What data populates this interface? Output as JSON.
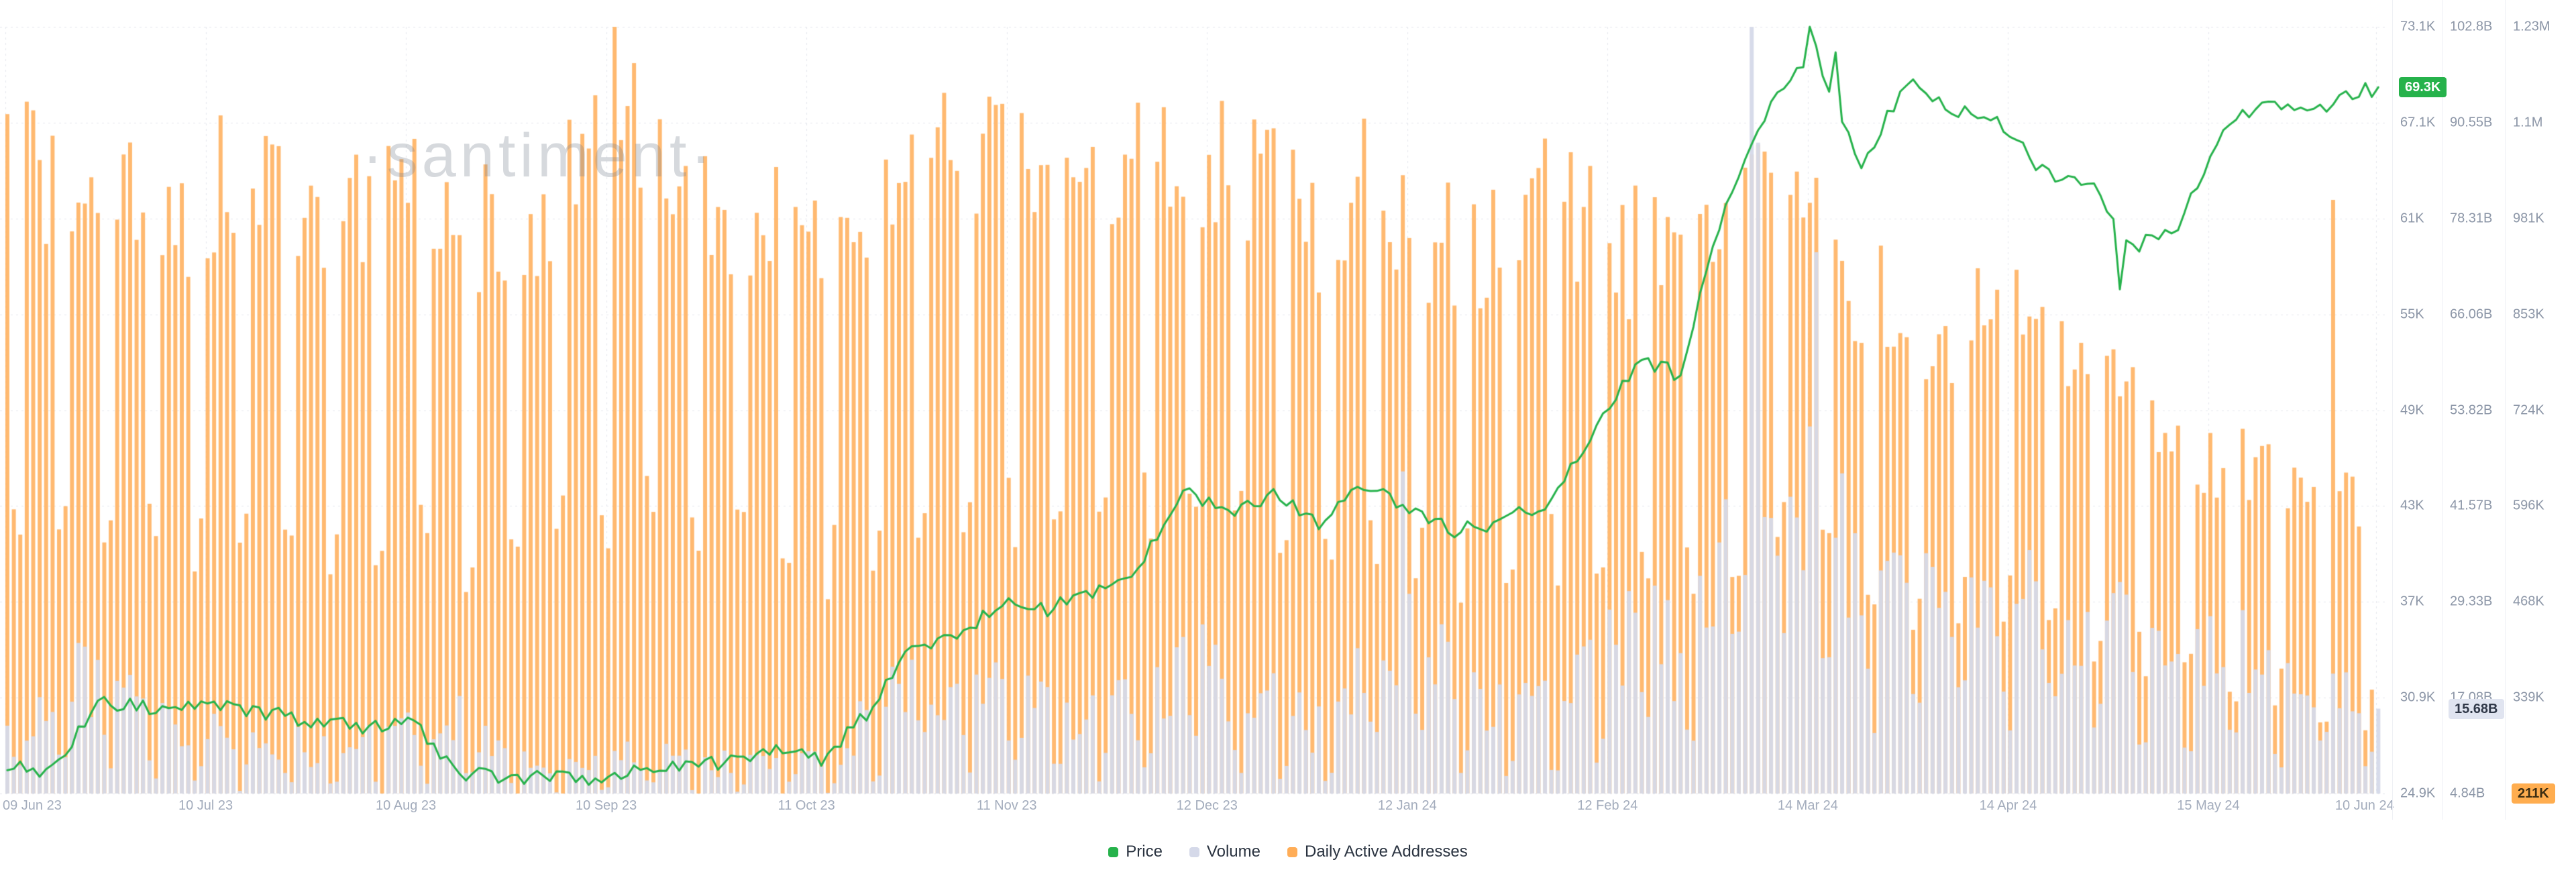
{
  "watermark": "·santiment·",
  "colors": {
    "grid": "#E4E7ED",
    "separator": "#EEF0F5",
    "axis_text": "#8C96A7",
    "x_axis_text": "#A3ACBC",
    "legend_text": "#2A3340",
    "watermark": "rgba(120,128,144,0.30)"
  },
  "legend": {
    "items": [
      {
        "label": "Price",
        "color": "#26B24B"
      },
      {
        "label": "Volume",
        "color": "#D5D9E9"
      },
      {
        "label": "Daily Active Addresses",
        "color": "#FFAD57"
      }
    ]
  },
  "chart_data": {
    "type": "mixed",
    "x_range_days": 367,
    "x_tick_labels": [
      "09 Jun 23",
      "10 Jul 23",
      "10 Aug 23",
      "10 Sep 23",
      "11 Oct 23",
      "11 Nov 23",
      "12 Dec 23",
      "12 Jan 24",
      "12 Feb 24",
      "14 Mar 24",
      "14 Apr 24",
      "15 May 24",
      "10 Jun 24"
    ],
    "x_tick_days": [
      0,
      31,
      62,
      93,
      124,
      155,
      186,
      217,
      248,
      279,
      310,
      341,
      367
    ],
    "axes": {
      "price": {
        "min": 24.9,
        "max": 73.1,
        "unit": "K USD",
        "ticks": [
          "73.1K",
          "67.1K",
          "61K",
          "55K",
          "49K",
          "43K",
          "37K",
          "30.9K",
          "24.9K"
        ]
      },
      "volume": {
        "min": 4.84,
        "max": 102.8,
        "unit": "B USD",
        "ticks": [
          "102.8B",
          "90.55B",
          "78.31B",
          "66.06B",
          "53.82B",
          "41.57B",
          "29.33B",
          "17.08B",
          "4.84B"
        ]
      },
      "daa": {
        "min": 211,
        "max": 1230,
        "unit": "K addresses",
        "ticks": [
          "1.23M",
          "1.1M",
          "981K",
          "853K",
          "724K",
          "596K",
          "468K",
          "339K",
          "211K"
        ]
      }
    },
    "series": [
      {
        "name": "Price",
        "type": "line",
        "axis": "price",
        "color": "#26B24B",
        "alpha": 1,
        "jitter": 0.5,
        "anchor_step_days": 7,
        "anchors": [
          26.5,
          26.4,
          30.6,
          30.4,
          30.2,
          30.3,
          29.8,
          29.3,
          29.0,
          29.4,
          26.1,
          26.0,
          25.9,
          25.9,
          26.6,
          26.6,
          27.0,
          27.9,
          26.9,
          29.9,
          34.1,
          34.7,
          37.1,
          36.5,
          37.7,
          38.8,
          44.2,
          42.3,
          43.7,
          42.0,
          44.1,
          42.8,
          41.5,
          42.0,
          43.1,
          47.1,
          52.0,
          51.3,
          62.0,
          68.5,
          71.4,
          64.0,
          69.9,
          67.9,
          67.2,
          64.0,
          63.5,
          59.0,
          60.8,
          66.9,
          68.6,
          67.5,
          69.1
        ],
        "events": [
          [
            279,
            73.1
          ],
          [
            283,
            71.5
          ],
          [
            327,
            56.6
          ],
          [
            367,
            69.3
          ]
        ],
        "current": 69.3,
        "current_label": "69.3K",
        "badge": {
          "bg": "#26B24B",
          "text": "#FFFFFF"
        }
      },
      {
        "name": "Volume",
        "type": "bar",
        "axis": "volume",
        "color": "#D5D9E9",
        "alpha": 0.95,
        "jitter": 0.28,
        "weekend_factor": 0.55,
        "anchor_step_days": 7,
        "anchors": [
          15,
          16,
          21,
          14,
          12,
          13,
          11,
          10,
          11,
          13,
          16,
          9,
          9,
          8.5,
          9.5,
          9,
          8.5,
          9.5,
          9,
          14,
          21,
          18,
          17,
          16,
          14,
          16,
          22,
          19,
          16,
          13,
          23,
          27,
          19,
          15,
          18,
          21,
          27,
          22,
          38,
          52,
          44,
          32,
          27,
          29,
          28,
          30,
          24,
          27,
          22,
          24,
          21,
          19,
          17
        ],
        "events": [
          [
            216,
            46
          ],
          [
            270,
            102.8
          ],
          [
            271,
            88
          ],
          [
            280,
            74
          ],
          [
            367,
            15.68
          ]
        ],
        "current": 15.68,
        "current_label": "15.68B",
        "badge": {
          "bg": "#E0E4F0",
          "text": "#2F3747"
        }
      },
      {
        "name": "Daily Active Addresses",
        "type": "bar",
        "axis": "daa",
        "color": "#FFAD57",
        "alpha": 0.85,
        "jitter": 0.1,
        "weekend_factor": 0.55,
        "anchor_step_days": 7,
        "anchors": [
          1050,
          1000,
          1040,
          990,
          980,
          1030,
          1000,
          970,
          990,
          1020,
          970,
          940,
          1000,
          1040,
          1090,
          1020,
          980,
          960,
          940,
          990,
          1030,
          1060,
          1080,
          1030,
          1010,
          1050,
          1080,
          1030,
          1010,
          960,
          1020,
          980,
          930,
          950,
          990,
          960,
          930,
          910,
          960,
          1040,
          950,
          890,
          850,
          820,
          860,
          800,
          760,
          730,
          690,
          660,
          640,
          620,
          590
        ],
        "events": [
          [
            94,
            1230
          ],
          [
            360,
            1000
          ],
          [
            367,
            211
          ]
        ],
        "current": 211,
        "current_label": "211K",
        "badge": {
          "bg": "#FFAD4F",
          "text": "#3D2E12"
        }
      }
    ]
  }
}
